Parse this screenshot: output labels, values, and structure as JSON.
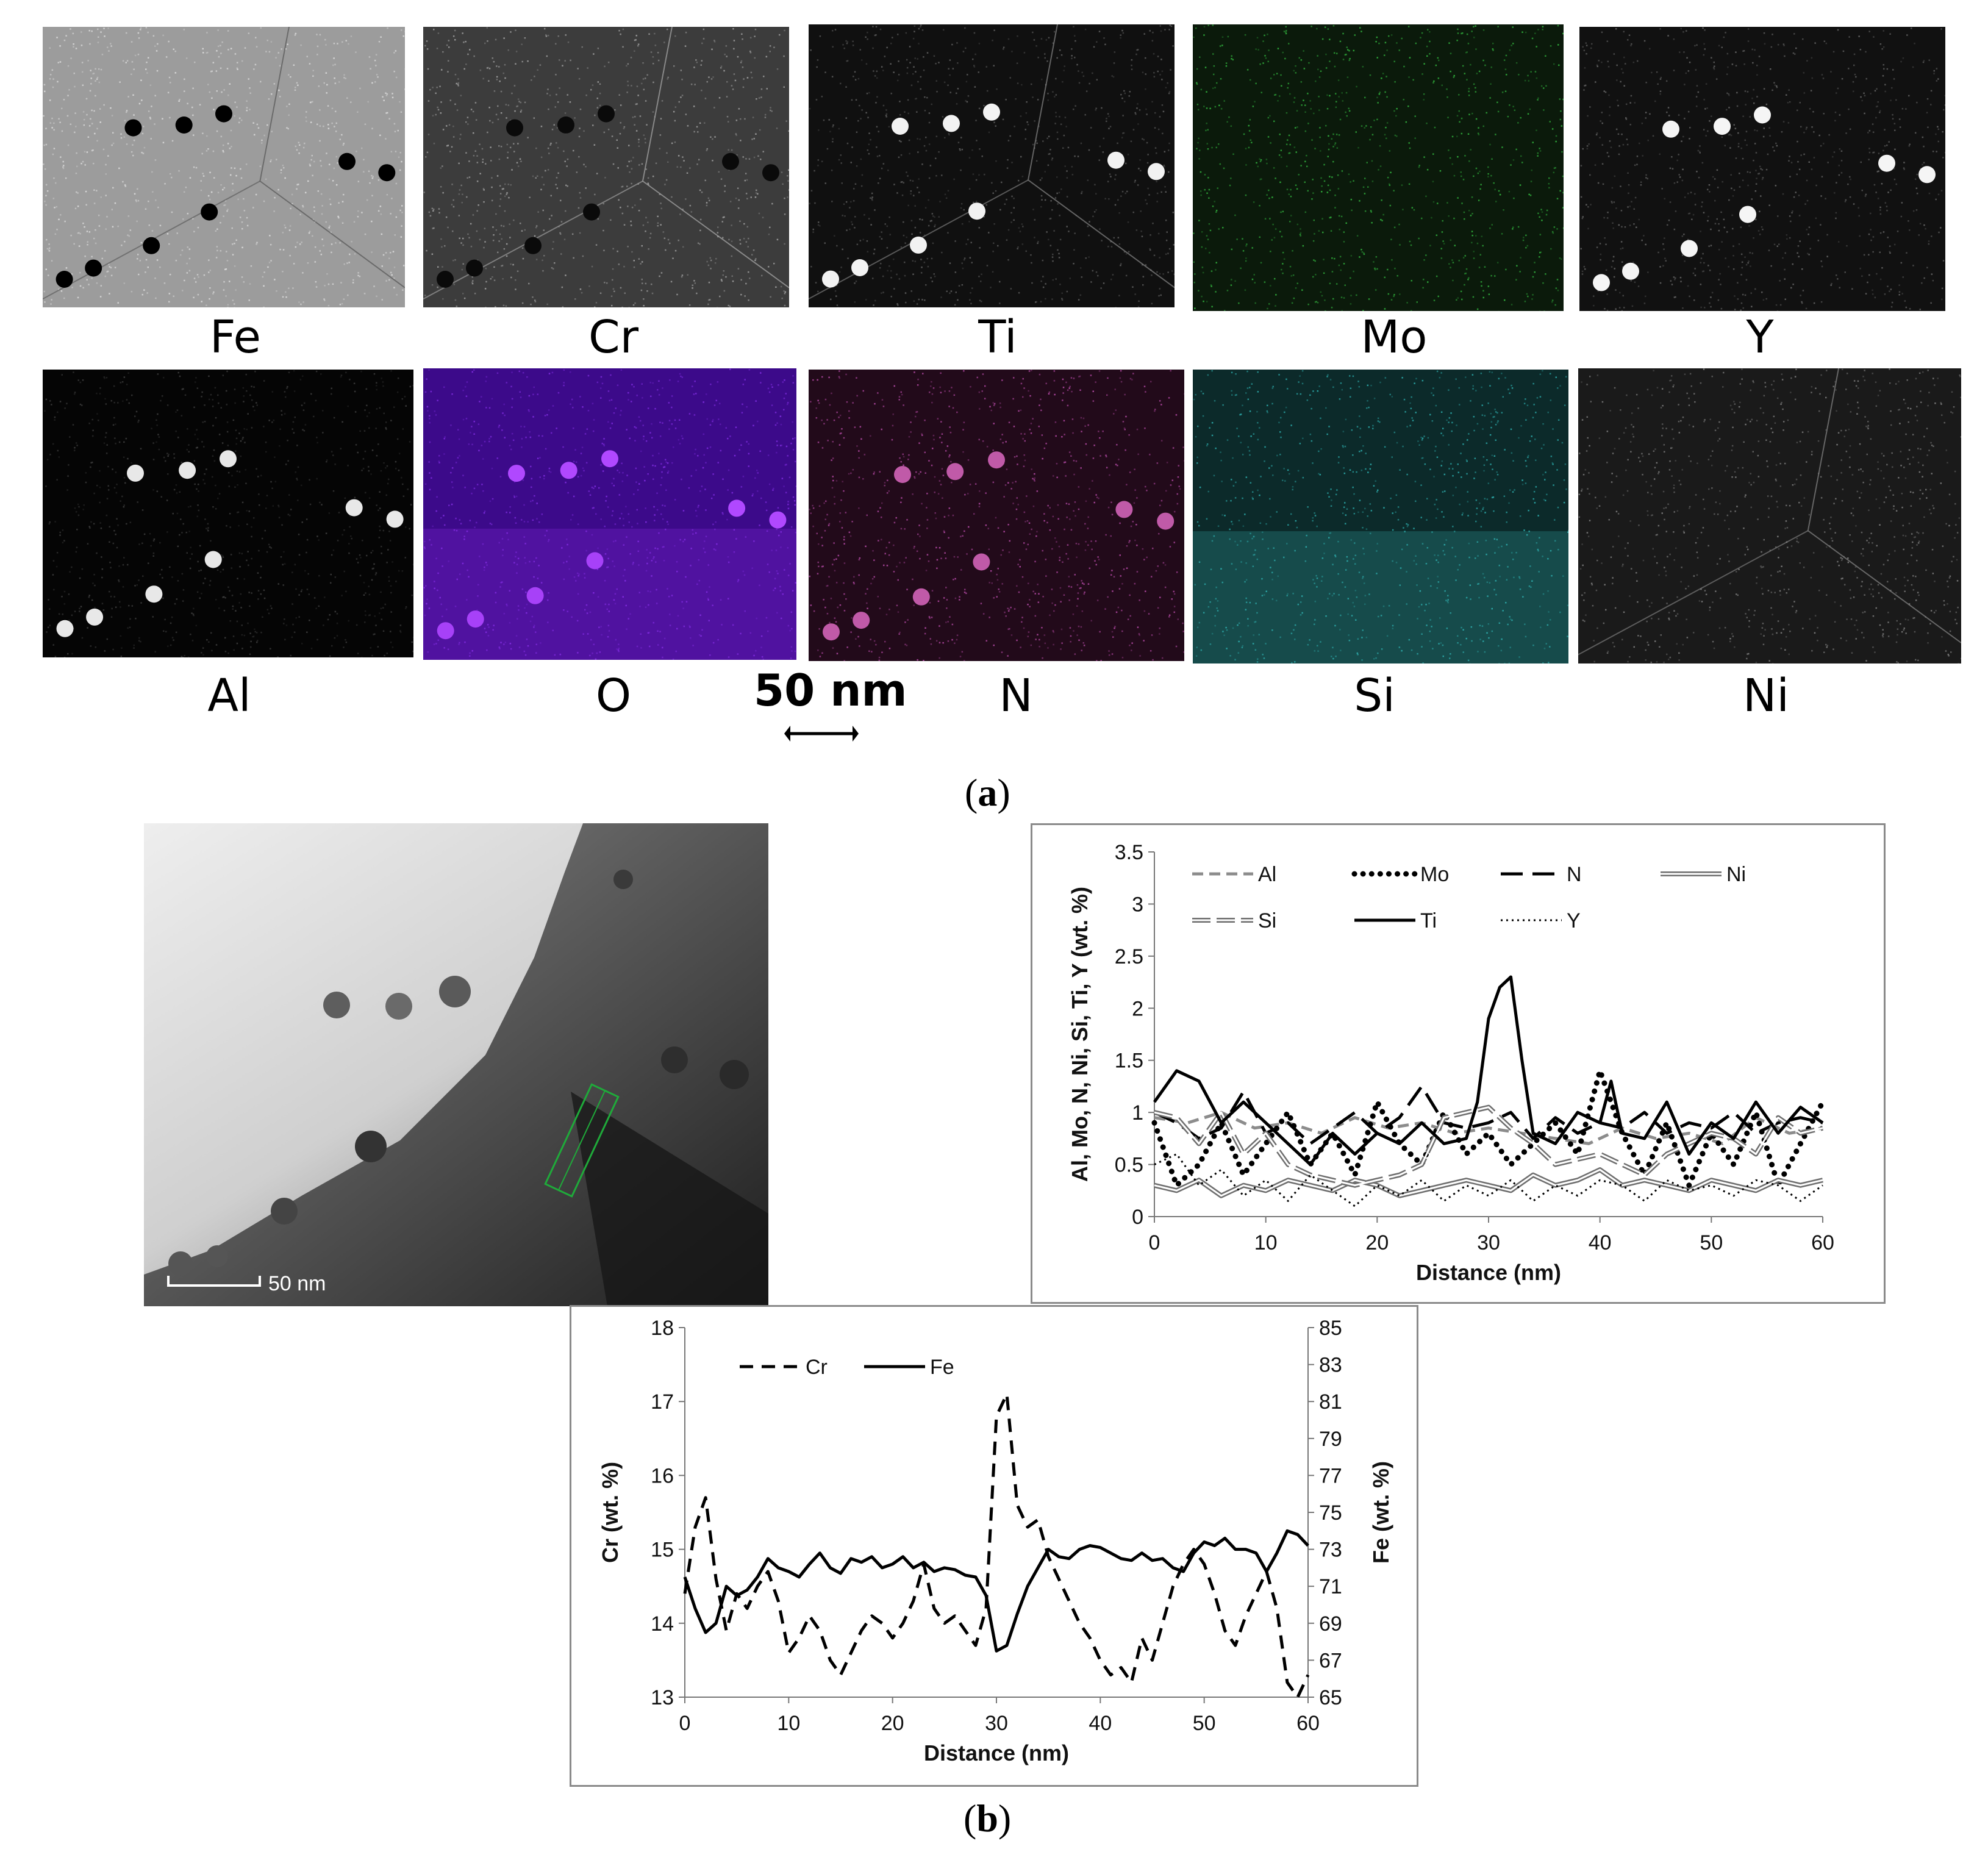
{
  "panel_a": {
    "caption": {
      "open": "(",
      "letter": "a",
      "close": ")"
    },
    "scale_bar": {
      "label": "50 nm"
    },
    "maps": [
      {
        "element": "Fe",
        "color": "#bdbdbd"
      },
      {
        "element": "Cr",
        "color": "#8a8a8a"
      },
      {
        "element": "Ti",
        "color": "#ffffff"
      },
      {
        "element": "Mo",
        "color": "#37a23a"
      },
      {
        "element": "Y",
        "color": "#ffffff"
      },
      {
        "element": "Al",
        "color": "#ffffff"
      },
      {
        "element": "O",
        "color": "#8a2be2"
      },
      {
        "element": "N",
        "color": "#c05aa8"
      },
      {
        "element": "Si",
        "color": "#35b0b0"
      },
      {
        "element": "Ni",
        "color": "#8a8a8a"
      }
    ]
  },
  "panel_b": {
    "caption": {
      "open": "(",
      "letter": "b",
      "close": ")"
    },
    "tem_image": {
      "scale_label": "50 nm"
    }
  },
  "chart_data": [
    {
      "type": "line",
      "xlabel": "Distance (nm)",
      "ylabel": "Al, Mo, N, Ni, Si, Ti, Y (wt. %)",
      "xlim": [
        0,
        60
      ],
      "ylim": [
        0,
        3.5
      ],
      "x_ticks": [
        "0",
        "10",
        "20",
        "30",
        "40",
        "50",
        "60"
      ],
      "y_ticks": [
        "0",
        "0.5",
        "1",
        "1.5",
        "2",
        "2.5",
        "3",
        "3.5"
      ],
      "grid": false,
      "legend_placement": "top",
      "series": [
        {
          "name": "Al",
          "style": "dashed-gray",
          "color": "#8c8c8c",
          "x": [
            0,
            3,
            6,
            9,
            12,
            15,
            18,
            21,
            24,
            27,
            30,
            33,
            36,
            39,
            42,
            45,
            48,
            51,
            54,
            57,
            60
          ],
          "values": [
            0.95,
            0.9,
            1.0,
            0.85,
            0.9,
            0.8,
            0.95,
            0.85,
            0.9,
            0.8,
            0.85,
            0.8,
            0.75,
            0.7,
            0.85,
            0.75,
            0.8,
            0.7,
            0.95,
            0.8,
            0.85
          ]
        },
        {
          "name": "Mo",
          "style": "dotted-heavy",
          "color": "#000000",
          "x": [
            0,
            2,
            4,
            6,
            8,
            10,
            12,
            14,
            16,
            18,
            20,
            22,
            24,
            26,
            28,
            30,
            32,
            34,
            36,
            38,
            40,
            42,
            44,
            46,
            48,
            50,
            52,
            54,
            56,
            58,
            60
          ],
          "values": [
            0.9,
            0.3,
            0.5,
            0.9,
            0.4,
            0.7,
            1.0,
            0.5,
            0.8,
            0.4,
            1.1,
            0.7,
            0.5,
            1.0,
            0.6,
            0.8,
            0.5,
            0.7,
            0.9,
            0.6,
            1.4,
            0.8,
            0.4,
            0.9,
            0.3,
            0.8,
            0.5,
            1.0,
            0.3,
            0.7,
            1.1
          ]
        },
        {
          "name": "N",
          "style": "long-dash",
          "color": "#000000",
          "x": [
            0,
            2,
            4,
            6,
            8,
            10,
            12,
            14,
            16,
            18,
            20,
            22,
            24,
            26,
            28,
            30,
            32,
            34,
            36,
            38,
            40,
            42,
            44,
            46,
            48,
            50,
            52,
            54,
            56,
            58,
            60
          ],
          "values": [
            1.0,
            0.9,
            0.75,
            0.85,
            1.2,
            0.8,
            0.9,
            0.7,
            0.85,
            1.0,
            0.8,
            0.95,
            1.25,
            0.9,
            0.85,
            0.9,
            1.0,
            0.75,
            0.95,
            0.8,
            0.9,
            0.85,
            1.0,
            0.8,
            0.9,
            0.85,
            1.0,
            0.8,
            0.9,
            0.95,
            0.9
          ]
        },
        {
          "name": "Ni",
          "style": "double-line",
          "color": "#6e6e6e",
          "x": [
            0,
            2,
            4,
            6,
            8,
            10,
            12,
            14,
            16,
            18,
            20,
            22,
            24,
            26,
            28,
            30,
            32,
            34,
            36,
            38,
            40,
            42,
            44,
            46,
            48,
            50,
            52,
            54,
            56,
            58,
            60
          ],
          "values": [
            0.3,
            0.25,
            0.35,
            0.2,
            0.3,
            0.25,
            0.35,
            0.3,
            0.25,
            0.35,
            0.3,
            0.2,
            0.25,
            0.3,
            0.35,
            0.3,
            0.25,
            0.4,
            0.3,
            0.35,
            0.45,
            0.3,
            0.35,
            0.3,
            0.25,
            0.35,
            0.3,
            0.25,
            0.35,
            0.3,
            0.35
          ]
        },
        {
          "name": "Si",
          "style": "double-line-dash",
          "color": "#6e6e6e",
          "x": [
            0,
            2,
            4,
            6,
            8,
            10,
            12,
            14,
            16,
            18,
            20,
            22,
            24,
            26,
            28,
            30,
            32,
            34,
            36,
            38,
            40,
            42,
            44,
            46,
            48,
            50,
            52,
            54,
            56,
            58,
            60
          ],
          "values": [
            1.0,
            0.95,
            0.7,
            1.0,
            0.6,
            0.8,
            0.5,
            0.4,
            0.35,
            0.3,
            0.35,
            0.4,
            0.5,
            0.95,
            1.0,
            1.05,
            0.85,
            0.7,
            0.5,
            0.55,
            0.6,
            0.5,
            0.4,
            0.6,
            0.7,
            0.8,
            0.75,
            0.6,
            0.95,
            0.8,
            0.85
          ]
        },
        {
          "name": "Ti",
          "style": "solid",
          "color": "#000000",
          "x": [
            0,
            2,
            4,
            6,
            8,
            10,
            12,
            14,
            16,
            18,
            20,
            22,
            24,
            26,
            28,
            29,
            30,
            31,
            32,
            33,
            34,
            36,
            38,
            40,
            41,
            42,
            44,
            46,
            48,
            50,
            52,
            54,
            56,
            58,
            60
          ],
          "values": [
            1.1,
            1.4,
            1.3,
            0.9,
            1.1,
            0.9,
            0.7,
            0.5,
            0.8,
            0.6,
            0.8,
            0.7,
            0.9,
            0.7,
            0.75,
            1.1,
            1.9,
            2.2,
            2.3,
            1.5,
            0.8,
            0.7,
            1.0,
            0.9,
            1.3,
            0.8,
            0.75,
            1.1,
            0.6,
            0.9,
            0.75,
            1.1,
            0.8,
            1.05,
            0.9
          ]
        },
        {
          "name": "Y",
          "style": "fine-dotted",
          "color": "#000000",
          "x": [
            0,
            2,
            4,
            6,
            8,
            10,
            12,
            14,
            16,
            18,
            20,
            22,
            24,
            26,
            28,
            30,
            32,
            34,
            36,
            38,
            40,
            42,
            44,
            46,
            48,
            50,
            52,
            54,
            56,
            58,
            60
          ],
          "values": [
            0.5,
            0.6,
            0.3,
            0.45,
            0.2,
            0.35,
            0.15,
            0.4,
            0.25,
            0.1,
            0.3,
            0.2,
            0.35,
            0.15,
            0.3,
            0.2,
            0.35,
            0.15,
            0.3,
            0.2,
            0.35,
            0.3,
            0.15,
            0.35,
            0.25,
            0.3,
            0.2,
            0.35,
            0.3,
            0.15,
            0.3
          ]
        }
      ]
    },
    {
      "type": "line",
      "xlabel": "Distance (nm)",
      "ylabel": "Cr (wt. %)",
      "ylabel_right": "Fe (wt. %)",
      "xlim": [
        0,
        60
      ],
      "ylim": [
        13,
        18
      ],
      "ylim_right": [
        65,
        85
      ],
      "x_ticks": [
        "0",
        "10",
        "20",
        "30",
        "40",
        "50",
        "60"
      ],
      "y_ticks": [
        "13",
        "14",
        "15",
        "16",
        "17",
        "18"
      ],
      "y_ticks_right": [
        "65",
        "67",
        "69",
        "71",
        "73",
        "75",
        "77",
        "79",
        "81",
        "83",
        "85"
      ],
      "grid": false,
      "legend_placement": "top-left",
      "series": [
        {
          "name": "Cr",
          "axis": "left",
          "style": "dashed",
          "color": "#000000",
          "x": [
            0,
            1,
            2,
            3,
            4,
            5,
            6,
            7,
            8,
            9,
            10,
            11,
            12,
            13,
            14,
            15,
            16,
            17,
            18,
            19,
            20,
            21,
            22,
            23,
            24,
            25,
            26,
            27,
            28,
            29,
            30,
            31,
            32,
            33,
            34,
            35,
            36,
            37,
            38,
            39,
            40,
            41,
            42,
            43,
            44,
            45,
            46,
            47,
            48,
            49,
            50,
            51,
            52,
            53,
            54,
            55,
            56,
            57,
            58,
            59,
            60
          ],
          "values": [
            14.4,
            15.3,
            15.7,
            14.6,
            13.9,
            14.4,
            14.2,
            14.5,
            14.7,
            14.3,
            13.6,
            13.8,
            14.1,
            13.9,
            13.5,
            13.3,
            13.6,
            13.9,
            14.1,
            14.0,
            13.8,
            14.0,
            14.3,
            14.8,
            14.2,
            14.0,
            14.1,
            13.9,
            13.7,
            14.2,
            16.8,
            17.1,
            15.6,
            15.3,
            15.4,
            14.9,
            14.6,
            14.3,
            14.0,
            13.8,
            13.5,
            13.3,
            13.4,
            13.2,
            13.8,
            13.5,
            14.0,
            14.5,
            14.8,
            15.0,
            14.8,
            14.4,
            13.9,
            13.7,
            14.1,
            14.4,
            14.7,
            14.2,
            13.2,
            13.0,
            13.3
          ]
        },
        {
          "name": "Fe",
          "axis": "right",
          "style": "solid",
          "color": "#000000",
          "x": [
            0,
            1,
            2,
            3,
            4,
            5,
            6,
            7,
            8,
            9,
            10,
            11,
            12,
            13,
            14,
            15,
            16,
            17,
            18,
            19,
            20,
            21,
            22,
            23,
            24,
            25,
            26,
            27,
            28,
            29,
            30,
            31,
            32,
            33,
            34,
            35,
            36,
            37,
            38,
            39,
            40,
            41,
            42,
            43,
            44,
            45,
            46,
            47,
            48,
            49,
            50,
            51,
            52,
            53,
            54,
            55,
            56,
            57,
            58,
            59,
            60
          ],
          "values": [
            71.5,
            69.8,
            68.5,
            69.0,
            71.0,
            70.5,
            70.8,
            71.5,
            72.5,
            72.0,
            71.8,
            71.5,
            72.2,
            72.8,
            72.0,
            71.7,
            72.5,
            72.3,
            72.6,
            72.0,
            72.2,
            72.6,
            72.0,
            72.3,
            71.8,
            72.0,
            71.9,
            71.6,
            71.5,
            70.5,
            67.5,
            67.8,
            69.5,
            71.0,
            72.0,
            73.0,
            72.6,
            72.5,
            73.0,
            73.2,
            73.1,
            72.8,
            72.5,
            72.4,
            72.8,
            72.4,
            72.5,
            72.0,
            71.8,
            72.8,
            73.4,
            73.2,
            73.6,
            73.0,
            73.0,
            72.8,
            71.8,
            72.8,
            74.0,
            73.8,
            73.2
          ]
        }
      ]
    }
  ]
}
